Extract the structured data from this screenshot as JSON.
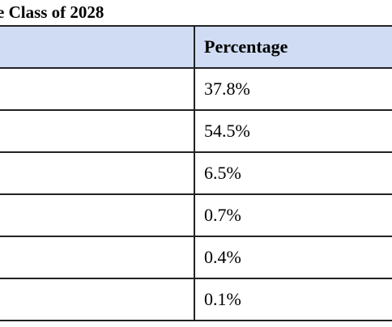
{
  "caption": "e Class of 2028",
  "table": {
    "headers": [
      "",
      "Percentage"
    ],
    "rows": [
      [
        "",
        "37.8%"
      ],
      [
        "",
        "54.5%"
      ],
      [
        "",
        "6.5%"
      ],
      [
        "",
        "0.7%"
      ],
      [
        "",
        "0.4%"
      ],
      [
        "",
        "0.1%"
      ]
    ]
  },
  "colors": {
    "header_background": "#cfdcf3",
    "border": "#222222"
  }
}
